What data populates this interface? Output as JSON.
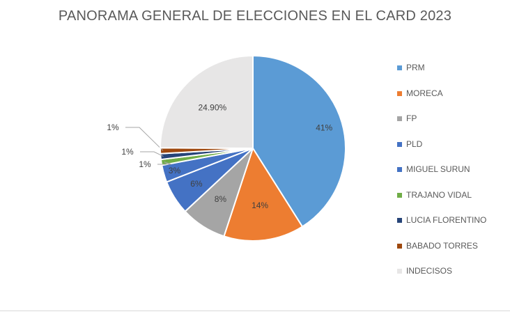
{
  "chart_data": {
    "type": "pie",
    "title": "PANORAMA GENERAL DE ELECCIONES EN EL CARD 2023",
    "legend_position": "right",
    "categories": [
      "PRM",
      "MORECA",
      "FP",
      "PLD",
      "MIGUEL SURUN",
      "TRAJANO VIDAL",
      "LUCIA FLORENTINO",
      "BABADO TORRES",
      "INDECISOS"
    ],
    "values": [
      41,
      14,
      8,
      6,
      3,
      1,
      1,
      1,
      24.9
    ],
    "data_labels": [
      "41%",
      "14%",
      "8%",
      "6%",
      "3%",
      "1%",
      "1%",
      "1%",
      "24.90%"
    ],
    "colors": [
      "#5b9bd5",
      "#ed7d31",
      "#a5a5a5",
      "#4472c4",
      "#4472c4",
      "#70ad47",
      "#264478",
      "#9e480e",
      "#e7e6e6"
    ]
  }
}
